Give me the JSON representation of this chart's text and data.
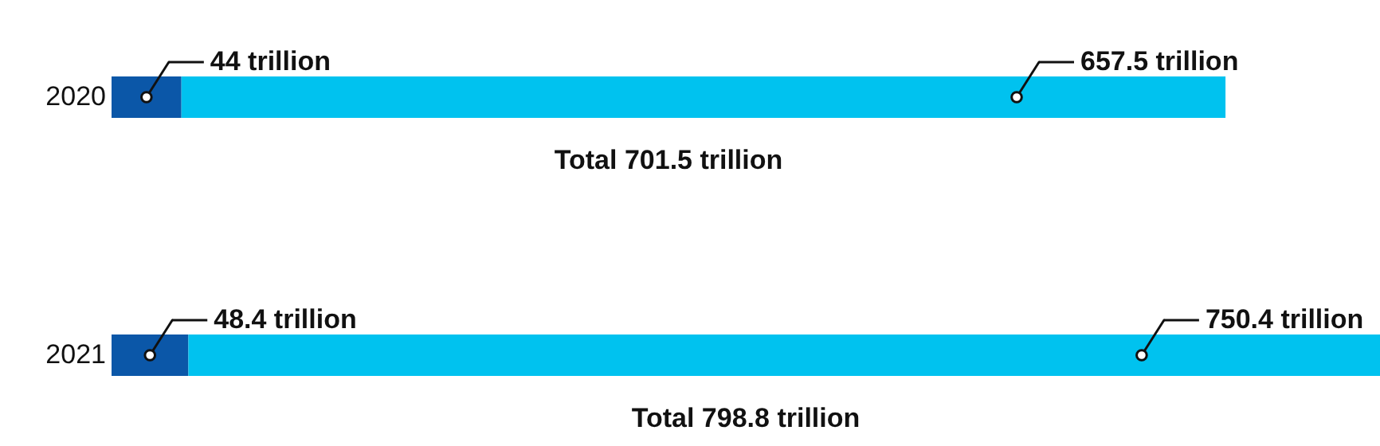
{
  "chart_data": {
    "type": "bar",
    "orientation": "horizontal",
    "stacked": true,
    "categories": [
      "2020",
      "2021"
    ],
    "series": [
      {
        "color": "#0b57a8",
        "values": [
          44,
          48.4
        ],
        "value_labels": [
          "44 trillion",
          "48.4 trillion"
        ]
      },
      {
        "color": "#00c2ef",
        "values": [
          657.5,
          750.4
        ],
        "value_labels": [
          "657.5 trillion",
          "750.4 trillion"
        ]
      }
    ],
    "totals": [
      "Total 701.5 trillion",
      "Total 798.8 trillion"
    ]
  }
}
